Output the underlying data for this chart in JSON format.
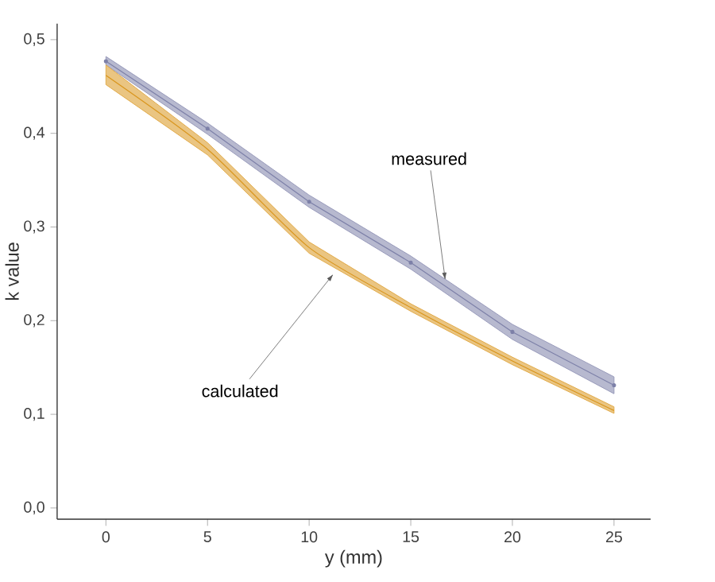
{
  "chart_data": {
    "type": "line",
    "xlabel": "y (mm)",
    "ylabel": "k value",
    "x": [
      0,
      5,
      10,
      15,
      20,
      25
    ],
    "series": [
      {
        "color": "#7d80a8",
        "marker": "circle",
        "values": [
          0.477,
          0.405,
          0.327,
          0.262,
          0.188,
          0.131
        ],
        "lower": [
          0.473,
          0.399,
          0.321,
          0.255,
          0.18,
          0.122
        ],
        "upper": [
          0.482,
          0.411,
          0.334,
          0.269,
          0.196,
          0.14
        ]
      },
      {
        "color": "#d9951c",
        "values": [
          0.462,
          0.383,
          0.278,
          0.214,
          0.157,
          0.104
        ],
        "lower": [
          0.452,
          0.377,
          0.272,
          0.21,
          0.153,
          0.101
        ],
        "upper": [
          0.473,
          0.39,
          0.284,
          0.218,
          0.161,
          0.108
        ]
      }
    ],
    "xlim": [
      -2.4,
      26.8
    ],
    "ylim": [
      -0.012,
      0.517
    ],
    "xticks": [
      0,
      5,
      10,
      15,
      20,
      25
    ],
    "yticks": [
      {
        "value": 0,
        "label": "0,0"
      },
      {
        "value": 0.1,
        "label": "0,1"
      },
      {
        "value": 0.2,
        "label": "0,2"
      },
      {
        "value": 0.3,
        "label": "0,3"
      },
      {
        "value": 0.4,
        "label": "0,4"
      },
      {
        "value": 0.5,
        "label": "0,5"
      }
    ],
    "annotations": [
      {
        "text": "measured",
        "x": 16.7,
        "y": 0.243
      },
      {
        "text": "calculated",
        "x": 11.2,
        "y": 0.25
      }
    ],
    "grid": false,
    "legend": false
  }
}
